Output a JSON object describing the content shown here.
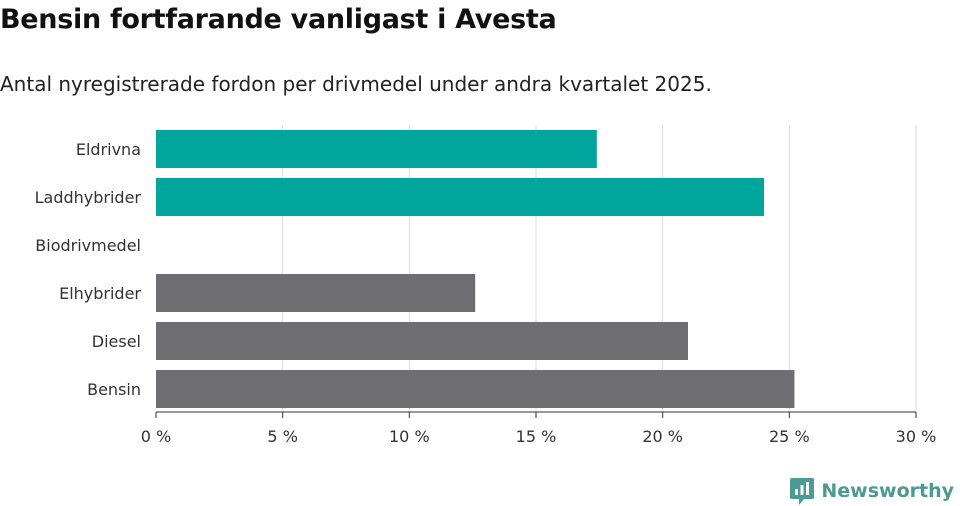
{
  "title": "Bensin fortfarande vanligast i Avesta",
  "subtitle": "Antal nyregistrerade fordon per drivmedel under andra kvartalet 2025.",
  "brand": {
    "name": "Newsworthy",
    "color": "#4b9a93",
    "icon": "newsworthy-logo-icon"
  },
  "colors": {
    "highlight": "#00a59b",
    "base": "#6e6d72",
    "grid": "#dddddd"
  },
  "chart_data": {
    "type": "bar",
    "orientation": "horizontal",
    "categories": [
      "Eldrivna",
      "Laddhybrider",
      "Biodrivmedel",
      "Elhybrider",
      "Diesel",
      "Bensin"
    ],
    "values": [
      17.4,
      24.0,
      0,
      12.6,
      21.0,
      25.2
    ],
    "bar_colors": [
      "#00a59b",
      "#00a59b",
      "#6e6d72",
      "#6e6d72",
      "#6e6d72",
      "#6e6d72"
    ],
    "xlim": [
      0,
      30
    ],
    "xticks": [
      0,
      5,
      10,
      15,
      20,
      25,
      30
    ],
    "tick_labels": [
      "0 %",
      "5 %",
      "10 %",
      "15 %",
      "20 %",
      "25 %",
      "30 %"
    ],
    "xlabel": "",
    "ylabel": "",
    "grid": "vertical",
    "legend": "none"
  }
}
